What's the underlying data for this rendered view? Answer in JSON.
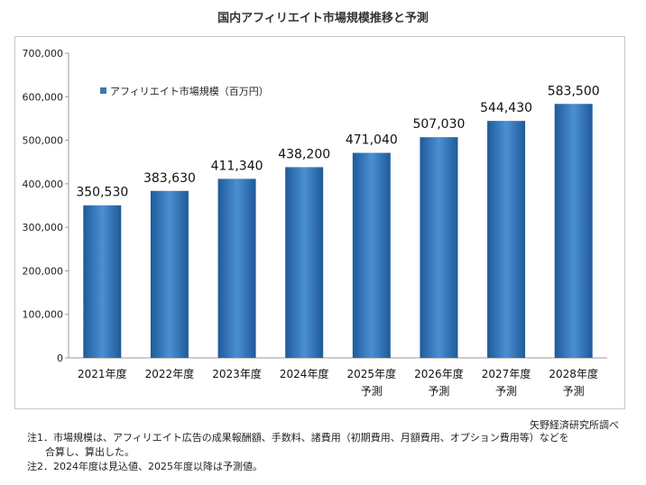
{
  "chart_data": {
    "type": "bar",
    "title": "国内アフィリエイト市場規模推移と予測",
    "categories": [
      [
        "2021年度"
      ],
      [
        "2022年度"
      ],
      [
        "2023年度"
      ],
      [
        "2024年度"
      ],
      [
        "2025年度",
        "予測"
      ],
      [
        "2026年度",
        "予測"
      ],
      [
        "2027年度",
        "予測"
      ],
      [
        "2028年度",
        "予測"
      ]
    ],
    "series": [
      {
        "name": "アフィリエイト市場規模（百万円）",
        "values": [
          350530,
          383630,
          411340,
          438200,
          471040,
          507030,
          544430,
          583500
        ],
        "color": "#3a78b8"
      }
    ],
    "data_labels": [
      "350,530",
      "383,630",
      "411,340",
      "438,200",
      "471,040",
      "507,030",
      "544,430",
      "583,500"
    ],
    "y_ticks": [
      "0",
      "100,000",
      "200,000",
      "300,000",
      "400,000",
      "500,000",
      "600,000",
      "700,000"
    ],
    "ylim": [
      0,
      700000
    ],
    "legend": "top-left",
    "grid": false
  },
  "source": "矢野経済研究所調べ",
  "notes": [
    "注1．市場規模は、アフィリエイト広告の成果報酬額、手数料、諸費用（初期費用、月額費用、オプション費用等）などを",
    "合算し、算出した。",
    "注2．2024年度は見込値、2025年度以降は予測値。"
  ]
}
